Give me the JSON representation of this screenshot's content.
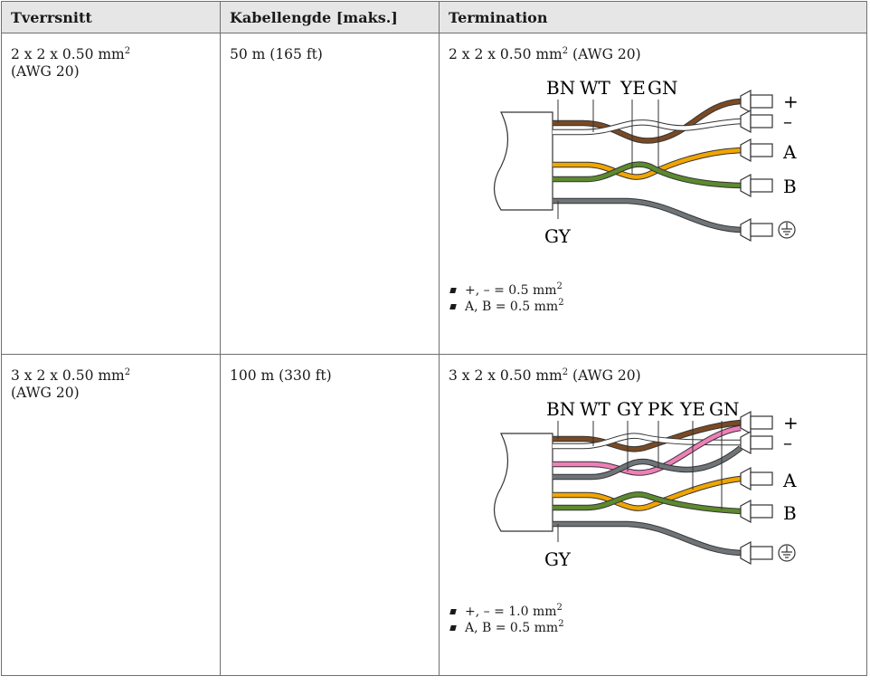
{
  "table": {
    "headers": [
      "Tverrsnitt",
      "Kabellengde [maks.]",
      "Termination"
    ],
    "rows": [
      {
        "cross_section_main": "2 x 2 x 0.50 mm",
        "cross_section_sup": "2",
        "cross_section_awg": "(AWG 20)",
        "cable_length": "50 m (165 ft)",
        "termination_main": "2 x 2 x 0.50 mm",
        "termination_sup": "2",
        "termination_awg": " (AWG 20)",
        "wire_labels_top": [
          "BN",
          "WT",
          "YE",
          "GN"
        ],
        "wire_label_bottom": "GY",
        "terminal_labels": [
          "+",
          "–",
          "A",
          "B"
        ],
        "notes": [
          {
            "text": "+, – = 0.5 mm",
            "sup": "2"
          },
          {
            "text": "A, B = 0.5 mm",
            "sup": "2"
          }
        ]
      },
      {
        "cross_section_main": "3 x 2 x 0.50 mm",
        "cross_section_sup": "2",
        "cross_section_awg": "(AWG 20)",
        "cable_length": "100 m (330 ft)",
        "termination_main": "3 x 2 x 0.50 mm",
        "termination_sup": "2",
        "termination_awg": " (AWG 20)",
        "wire_labels_top": [
          "BN",
          "WT",
          "GY",
          "PK",
          "YE",
          "GN"
        ],
        "wire_label_bottom": "GY",
        "terminal_labels": [
          "+",
          "–",
          "A",
          "B"
        ],
        "notes": [
          {
            "text": "+, – = 1.0 mm",
            "sup": "2"
          },
          {
            "text": "A, B = 0.5 mm",
            "sup": "2"
          }
        ]
      }
    ]
  },
  "colors": {
    "brown": "#7a4a24",
    "white": "#ffffff",
    "yellow": "#f0a500",
    "green": "#5c8a2e",
    "grey": "#6e7478",
    "pink": "#ee7fb8",
    "outline": "#333333"
  }
}
